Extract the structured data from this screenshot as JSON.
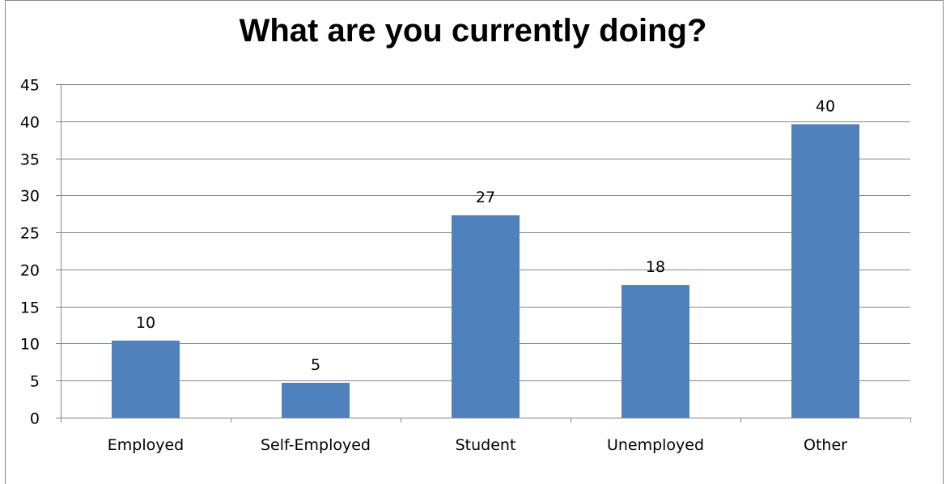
{
  "chart_data": {
    "type": "bar",
    "title": "What are you currently doing?",
    "categories": [
      "Employed",
      "Self-Employed",
      "Student",
      "Unemployed",
      "Other"
    ],
    "values": [
      10.4,
      4.7,
      27.3,
      17.9,
      39.6
    ],
    "data_labels": [
      "10",
      "5",
      "27",
      "18",
      "40"
    ],
    "ylim": [
      0,
      45
    ],
    "ytick_step": 5,
    "xlabel": "",
    "ylabel": "",
    "grid": true,
    "legend": "none",
    "bar_color": "#4F81BD",
    "grid_color": "#868686"
  }
}
